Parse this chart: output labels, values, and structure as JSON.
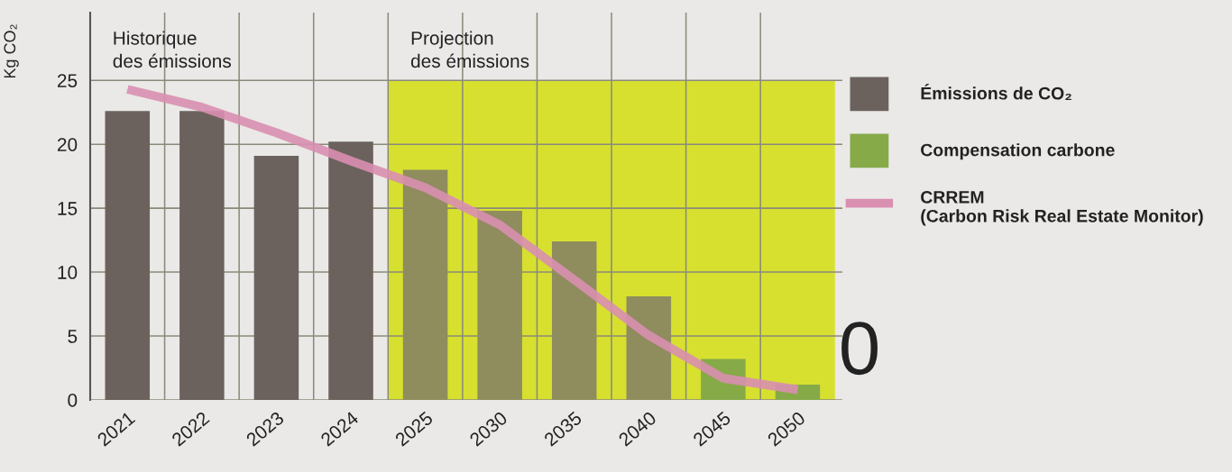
{
  "chart_data": {
    "type": "bar",
    "ylabel": "Kg CO₂",
    "categories": [
      "2021",
      "2022",
      "2023",
      "2024",
      "2025",
      "2030",
      "2035",
      "2040",
      "2045",
      "2050"
    ],
    "series": [
      {
        "name": "Émissions de CO₂",
        "color": "#6b625e",
        "colors": [
          "#6b625e",
          "#6b625e",
          "#6b625e",
          "#6b625e",
          "#8f8c5e",
          "#8f8c5e",
          "#8f8c5e",
          "#8f8c5e",
          null,
          null
        ],
        "values": [
          22.6,
          22.6,
          19.1,
          20.2,
          18.0,
          14.8,
          12.4,
          8.1,
          null,
          null
        ]
      },
      {
        "name": "Compensation carbone",
        "color": "#86aa48",
        "values": [
          null,
          null,
          null,
          null,
          null,
          null,
          null,
          null,
          3.2,
          1.2
        ]
      },
      {
        "name": "CRREM\n(Carbon Risk Real Estate Monitor)",
        "type": "line",
        "color": "#d98fb0",
        "values": [
          24.3,
          22.9,
          20.9,
          18.7,
          16.6,
          13.7,
          9.4,
          5.05,
          1.7,
          0.8
        ]
      }
    ],
    "bands": [
      {
        "axis": "x",
        "from": "2025",
        "to": "2050",
        "label": "Projection\ndes émissions",
        "color": "#d7e02f"
      }
    ],
    "annotations": [
      "Historique\ndes émissions",
      "0"
    ],
    "ylim": [
      0,
      30.3
    ],
    "yticks": [
      0,
      5,
      10,
      15,
      20,
      25
    ],
    "grid": true,
    "legend": "right"
  }
}
